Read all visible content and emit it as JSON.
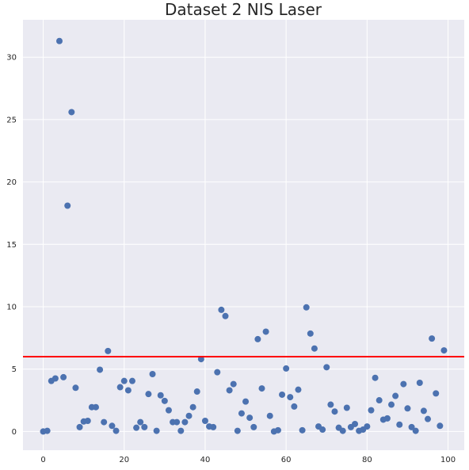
{
  "chart_data": {
    "type": "scatter",
    "title": "Dataset 2 NIS Laser",
    "xlabel": "",
    "ylabel": "",
    "xlim": [
      -5,
      104
    ],
    "ylim": [
      -1.5,
      33
    ],
    "xticks": [
      0,
      20,
      40,
      60,
      80,
      100
    ],
    "yticks": [
      0,
      5,
      10,
      15,
      20,
      25,
      30
    ],
    "grid": true,
    "background": "#EAEAF2",
    "marker_color": "#4C72B0",
    "threshold": {
      "y": 6.0,
      "color": "#FF0000"
    },
    "series": [
      {
        "x": [
          0,
          1,
          2,
          3,
          4,
          5,
          6,
          7,
          8,
          9,
          10,
          11,
          12,
          13,
          14,
          15,
          16,
          17,
          18,
          19,
          20,
          21,
          22,
          23,
          24,
          25,
          26,
          27,
          28,
          29,
          30,
          31,
          32,
          33,
          34,
          35,
          36,
          37,
          38,
          39,
          40,
          41,
          42,
          43,
          44,
          45,
          46,
          47,
          48,
          49,
          50,
          51,
          52,
          53,
          54,
          55,
          56,
          57,
          58,
          59,
          60,
          61,
          62,
          63,
          64,
          65,
          66,
          67,
          68,
          69,
          70,
          71,
          72,
          73,
          74,
          75,
          76,
          77,
          78,
          79,
          80,
          81,
          82,
          83,
          84,
          85,
          86,
          87,
          88,
          89,
          90,
          91,
          92,
          93,
          94,
          95,
          96,
          97,
          98,
          99
        ],
        "y": [
          0.0,
          0.05,
          4.05,
          4.25,
          31.3,
          4.35,
          18.1,
          25.6,
          3.5,
          0.35,
          0.8,
          0.85,
          1.95,
          1.95,
          4.95,
          0.75,
          6.45,
          0.45,
          0.05,
          3.55,
          4.05,
          3.3,
          4.05,
          0.3,
          0.75,
          0.35,
          3.0,
          4.6,
          0.05,
          2.9,
          2.45,
          1.7,
          0.75,
          0.75,
          0.05,
          0.75,
          1.25,
          1.95,
          3.2,
          5.8,
          0.85,
          0.4,
          0.35,
          4.75,
          9.75,
          9.25,
          3.3,
          3.8,
          0.05,
          1.45,
          2.4,
          1.1,
          0.35,
          7.4,
          3.45,
          8.0,
          1.25,
          0.0,
          0.1,
          2.95,
          5.05,
          2.75,
          2.0,
          3.35,
          0.1,
          9.95,
          7.85,
          6.65,
          0.4,
          0.15,
          5.15,
          2.15,
          1.6,
          0.3,
          0.05,
          1.9,
          0.35,
          0.6,
          0.05,
          0.15,
          0.4,
          1.7,
          4.3,
          2.5,
          0.95,
          1.05,
          2.15,
          2.85,
          0.55,
          3.8,
          1.85,
          0.35,
          0.05,
          3.9,
          1.65,
          1.0,
          7.45,
          3.05,
          0.45,
          6.5
        ]
      }
    ]
  }
}
